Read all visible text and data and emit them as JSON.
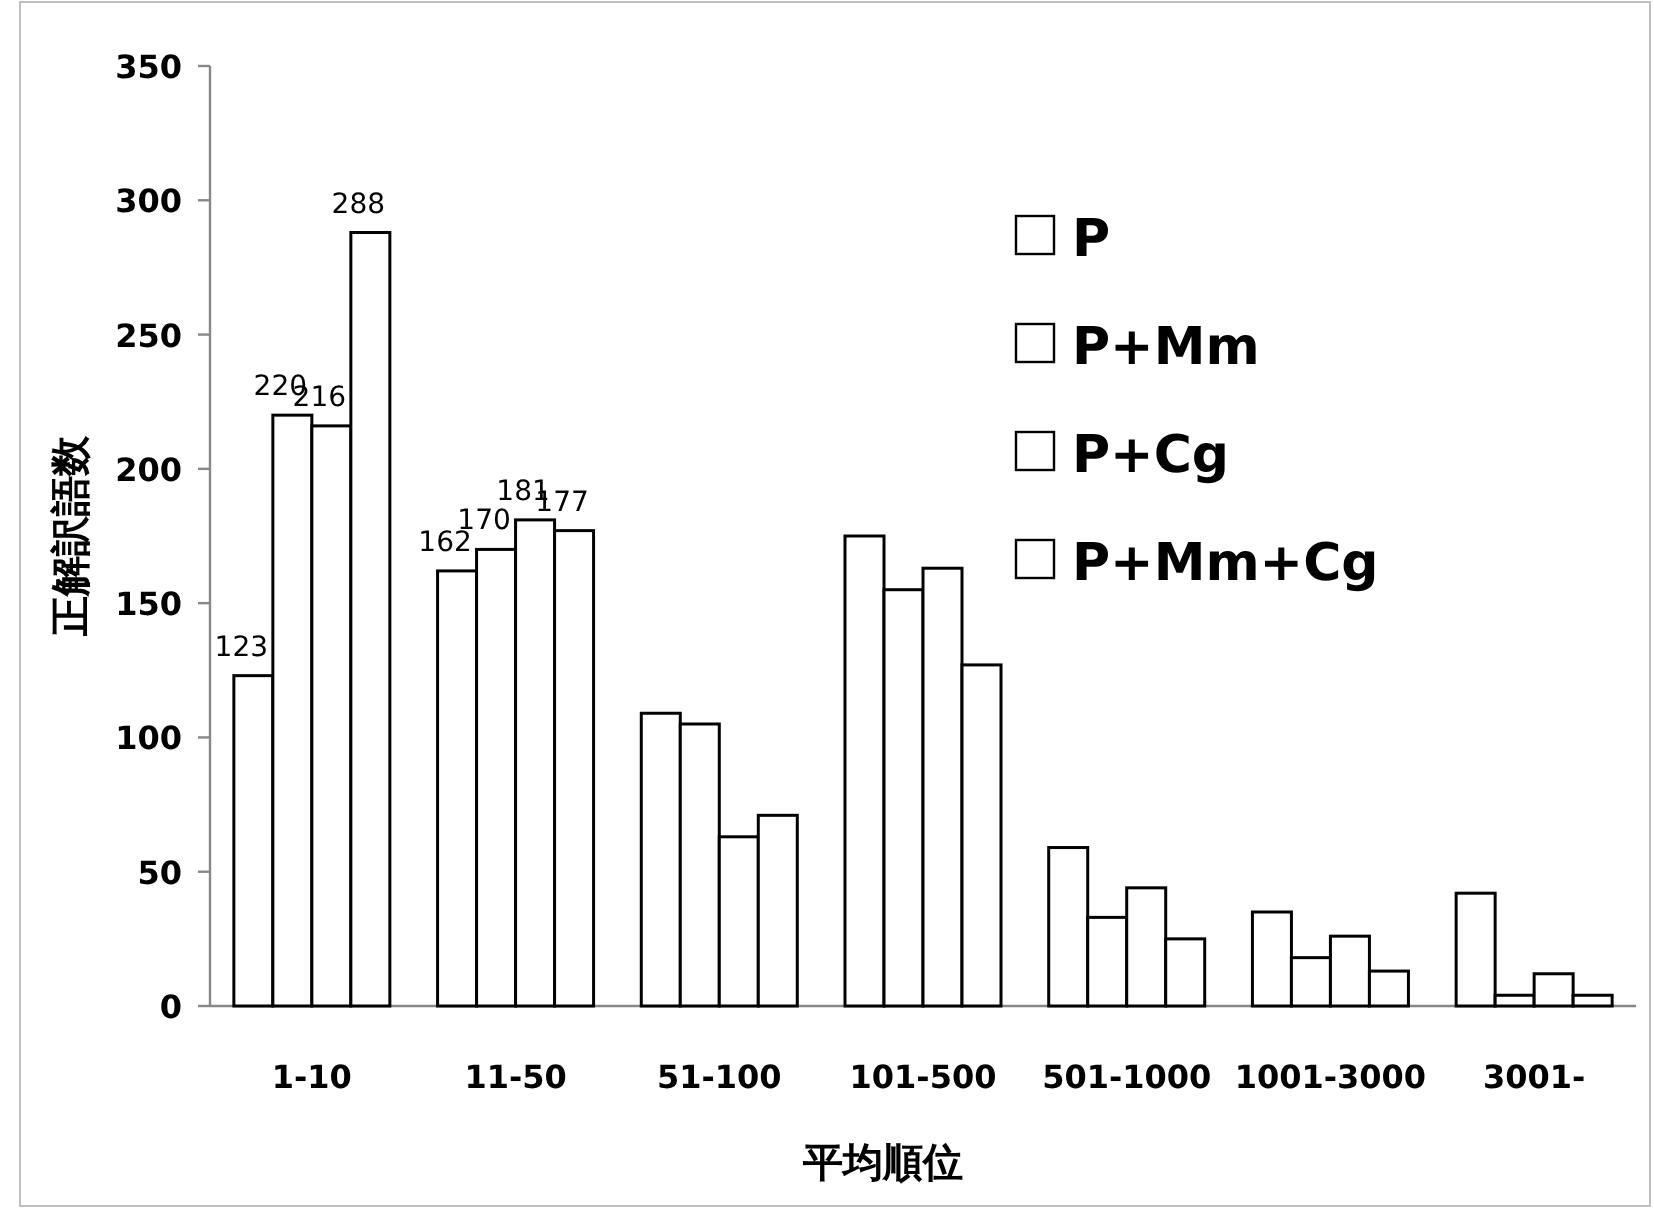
{
  "chart_data": {
    "type": "bar",
    "xlabel": "平均順位",
    "ylabel": "正解訳語数",
    "categories": [
      "1-10",
      "11-50",
      "51-100",
      "101-500",
      "501-1000",
      "1001-3000",
      "3001-"
    ],
    "series": [
      {
        "name": "P",
        "color": "#ffffff",
        "values": [
          123,
          162,
          109,
          175,
          59,
          35,
          42
        ],
        "value_labels": [
          "123",
          "162",
          null,
          null,
          null,
          null,
          null
        ]
      },
      {
        "name": "P+Mm",
        "color": "#ffffff",
        "values": [
          220,
          170,
          105,
          155,
          33,
          18,
          4
        ],
        "value_labels": [
          "220",
          "170",
          null,
          null,
          null,
          null,
          null
        ]
      },
      {
        "name": "P+Cg",
        "color": "#ffffff",
        "values": [
          216,
          181,
          63,
          163,
          44,
          26,
          12
        ],
        "value_labels": [
          "216",
          "181",
          null,
          null,
          null,
          null,
          null
        ]
      },
      {
        "name": "P+Mm+Cg",
        "color": "#ffffff",
        "values": [
          288,
          177,
          71,
          127,
          25,
          13,
          4
        ],
        "value_labels": [
          "288",
          "177",
          null,
          null,
          null,
          null,
          null
        ]
      }
    ],
    "ylim": [
      0,
      350
    ],
    "yticks": [
      0,
      50,
      100,
      150,
      200,
      250,
      300,
      350
    ],
    "legend": "top right"
  }
}
